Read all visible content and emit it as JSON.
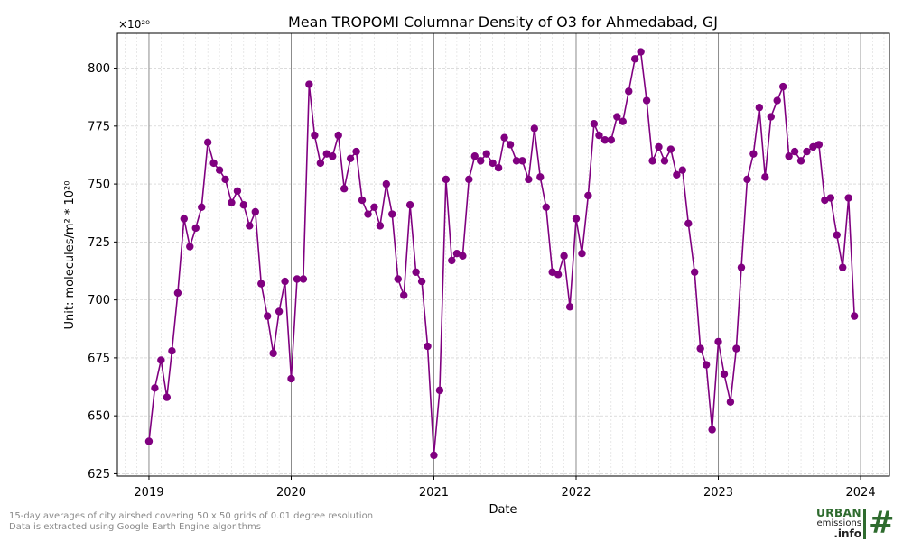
{
  "chart_data": {
    "type": "line",
    "title": "Mean TROPOMI Columnar Density of O3 for Ahmedabad, GJ",
    "xlabel": "Date",
    "ylabel": "Unit: molecules/m² * 10²⁰",
    "y_offset_label": "×10²⁰",
    "xlim": [
      "2018-10-12",
      "2024-03-15"
    ],
    "ylim": [
      624,
      815
    ],
    "y_ticks": [
      625,
      650,
      675,
      700,
      725,
      750,
      775,
      800
    ],
    "x_ticks": [
      {
        "label": "2019",
        "date": "2019-01-01"
      },
      {
        "label": "2020",
        "date": "2020-01-01"
      },
      {
        "label": "2021",
        "date": "2021-01-01"
      },
      {
        "label": "2022",
        "date": "2022-01-01"
      },
      {
        "label": "2023",
        "date": "2023-01-01"
      },
      {
        "label": "2024",
        "date": "2024-01-01"
      }
    ],
    "grid": true,
    "line_color": "#800080",
    "series": [
      {
        "points": [
          [
            "2019-01-01",
            639
          ],
          [
            "2019-01-16",
            662
          ],
          [
            "2019-02-01",
            674
          ],
          [
            "2019-02-16",
            658
          ],
          [
            "2019-03-01",
            678
          ],
          [
            "2019-03-16",
            703
          ],
          [
            "2019-04-01",
            735
          ],
          [
            "2019-04-16",
            723
          ],
          [
            "2019-05-01",
            731
          ],
          [
            "2019-05-16",
            740
          ],
          [
            "2019-06-01",
            768
          ],
          [
            "2019-06-16",
            759
          ],
          [
            "2019-07-01",
            756
          ],
          [
            "2019-07-16",
            752
          ],
          [
            "2019-08-01",
            742
          ],
          [
            "2019-08-16",
            747
          ],
          [
            "2019-09-01",
            741
          ],
          [
            "2019-09-16",
            732
          ],
          [
            "2019-10-01",
            738
          ],
          [
            "2019-10-16",
            707
          ],
          [
            "2019-11-01",
            693
          ],
          [
            "2019-11-16",
            677
          ],
          [
            "2019-12-01",
            695
          ],
          [
            "2019-12-16",
            708
          ],
          [
            "2020-01-01",
            666
          ],
          [
            "2020-01-16",
            709
          ],
          [
            "2020-02-01",
            709
          ],
          [
            "2020-02-16",
            793
          ],
          [
            "2020-03-01",
            771
          ],
          [
            "2020-03-16",
            759
          ],
          [
            "2020-04-01",
            763
          ],
          [
            "2020-04-16",
            762
          ],
          [
            "2020-05-01",
            771
          ],
          [
            "2020-05-16",
            748
          ],
          [
            "2020-06-01",
            761
          ],
          [
            "2020-06-16",
            764
          ],
          [
            "2020-07-01",
            743
          ],
          [
            "2020-07-16",
            737
          ],
          [
            "2020-08-01",
            740
          ],
          [
            "2020-08-16",
            732
          ],
          [
            "2020-09-01",
            750
          ],
          [
            "2020-09-16",
            737
          ],
          [
            "2020-10-01",
            709
          ],
          [
            "2020-10-16",
            702
          ],
          [
            "2020-11-01",
            741
          ],
          [
            "2020-11-16",
            712
          ],
          [
            "2020-12-01",
            708
          ],
          [
            "2020-12-16",
            680
          ],
          [
            "2021-01-01",
            633
          ],
          [
            "2021-01-16",
            661
          ],
          [
            "2021-02-01",
            752
          ],
          [
            "2021-02-16",
            717
          ],
          [
            "2021-03-01",
            720
          ],
          [
            "2021-03-16",
            719
          ],
          [
            "2021-04-01",
            752
          ],
          [
            "2021-04-16",
            762
          ],
          [
            "2021-05-01",
            760
          ],
          [
            "2021-05-16",
            763
          ],
          [
            "2021-06-01",
            759
          ],
          [
            "2021-06-16",
            757
          ],
          [
            "2021-07-01",
            770
          ],
          [
            "2021-07-16",
            767
          ],
          [
            "2021-08-01",
            760
          ],
          [
            "2021-08-16",
            760
          ],
          [
            "2021-09-01",
            752
          ],
          [
            "2021-09-16",
            774
          ],
          [
            "2021-10-01",
            753
          ],
          [
            "2021-10-16",
            740
          ],
          [
            "2021-11-01",
            712
          ],
          [
            "2021-11-16",
            711
          ],
          [
            "2021-12-01",
            719
          ],
          [
            "2021-12-16",
            697
          ],
          [
            "2022-01-01",
            735
          ],
          [
            "2022-01-16",
            720
          ],
          [
            "2022-02-01",
            745
          ],
          [
            "2022-02-16",
            776
          ],
          [
            "2022-03-01",
            771
          ],
          [
            "2022-03-16",
            769
          ],
          [
            "2022-04-01",
            769
          ],
          [
            "2022-04-16",
            779
          ],
          [
            "2022-05-01",
            777
          ],
          [
            "2022-05-16",
            790
          ],
          [
            "2022-06-01",
            804
          ],
          [
            "2022-06-16",
            807
          ],
          [
            "2022-07-01",
            786
          ],
          [
            "2022-07-16",
            760
          ],
          [
            "2022-08-01",
            766
          ],
          [
            "2022-08-16",
            760
          ],
          [
            "2022-09-01",
            765
          ],
          [
            "2022-09-16",
            754
          ],
          [
            "2022-10-01",
            756
          ],
          [
            "2022-10-16",
            733
          ],
          [
            "2022-11-01",
            712
          ],
          [
            "2022-11-16",
            679
          ],
          [
            "2022-12-01",
            672
          ],
          [
            "2022-12-16",
            644
          ],
          [
            "2023-01-01",
            682
          ],
          [
            "2023-01-16",
            668
          ],
          [
            "2023-02-01",
            656
          ],
          [
            "2023-02-16",
            679
          ],
          [
            "2023-03-01",
            714
          ],
          [
            "2023-03-16",
            752
          ],
          [
            "2023-04-01",
            763
          ],
          [
            "2023-04-16",
            783
          ],
          [
            "2023-05-01",
            753
          ],
          [
            "2023-05-16",
            779
          ],
          [
            "2023-06-01",
            786
          ],
          [
            "2023-06-16",
            792
          ],
          [
            "2023-07-01",
            762
          ],
          [
            "2023-07-16",
            764
          ],
          [
            "2023-08-01",
            760
          ],
          [
            "2023-08-16",
            764
          ],
          [
            "2023-09-01",
            766
          ],
          [
            "2023-09-16",
            767
          ],
          [
            "2023-10-01",
            743
          ],
          [
            "2023-10-16",
            744
          ],
          [
            "2023-11-01",
            728
          ],
          [
            "2023-11-16",
            714
          ],
          [
            "2023-12-01",
            744
          ],
          [
            "2023-12-16",
            693
          ]
        ]
      }
    ]
  },
  "footnotes": {
    "line1": "15-day averages of city airshed covering 50 x 50 grids of 0.01 degree resolution",
    "line2": "Data is extracted using Google Earth Engine algorithms"
  },
  "logo": {
    "line1": "URBAN",
    "line2": "emissions",
    "line3": ".info"
  }
}
